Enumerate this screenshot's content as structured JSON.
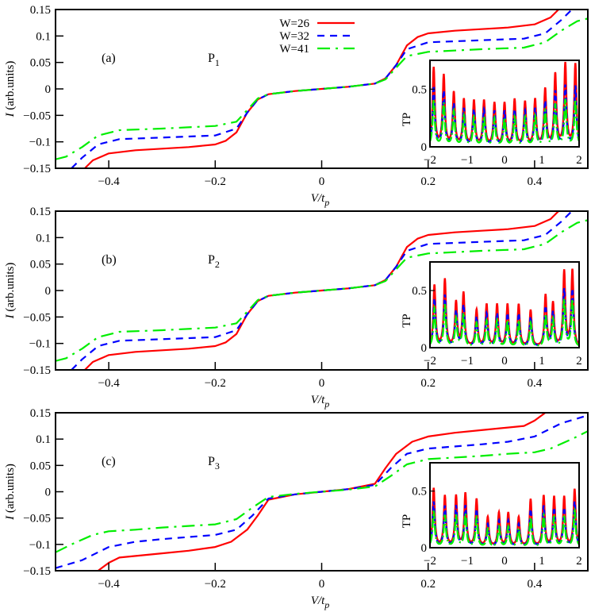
{
  "figure": {
    "legend_entries": [
      "W=26",
      "W=32",
      "W=41"
    ],
    "colors": {
      "W=26": "#ff0000",
      "W=32": "#0000ff",
      "W=41": "#00ee00"
    }
  },
  "chart_data": [
    {
      "type": "line",
      "panel": "(a)",
      "annotation": "P1",
      "xlabel": "V/t_p",
      "ylabel": "I (arb.units)",
      "xlim": [
        -0.5,
        0.5
      ],
      "ylim": [
        -0.15,
        0.15
      ],
      "xticks": [
        -0.4,
        -0.2,
        0,
        0.2,
        0.4
      ],
      "yticks": [
        -0.15,
        -0.1,
        -0.05,
        0,
        0.05,
        0.1,
        0.15
      ],
      "legend": "top-center",
      "series": [
        {
          "name": "W=26",
          "style": "solid",
          "x": [
            -0.445,
            -0.43,
            -0.4,
            -0.35,
            -0.3,
            -0.25,
            -0.2,
            -0.18,
            -0.16,
            -0.14,
            -0.12,
            -0.1,
            -0.05,
            0,
            0.05,
            0.1,
            0.12,
            0.14,
            0.16,
            0.18,
            0.2,
            0.25,
            0.3,
            0.35,
            0.4,
            0.43,
            0.445
          ],
          "y": [
            -0.15,
            -0.135,
            -0.122,
            -0.116,
            -0.113,
            -0.11,
            -0.105,
            -0.098,
            -0.082,
            -0.045,
            -0.02,
            -0.01,
            -0.004,
            0,
            0.004,
            0.01,
            0.02,
            0.045,
            0.082,
            0.098,
            0.105,
            0.11,
            0.113,
            0.116,
            0.122,
            0.135,
            0.15
          ]
        },
        {
          "name": "W=32",
          "style": "dashed",
          "x": [
            -0.47,
            -0.45,
            -0.42,
            -0.38,
            -0.3,
            -0.2,
            -0.16,
            -0.14,
            -0.12,
            -0.1,
            -0.05,
            0,
            0.05,
            0.1,
            0.12,
            0.14,
            0.16,
            0.2,
            0.3,
            0.38,
            0.42,
            0.45,
            0.47
          ],
          "y": [
            -0.15,
            -0.13,
            -0.105,
            -0.095,
            -0.092,
            -0.088,
            -0.075,
            -0.045,
            -0.02,
            -0.01,
            -0.004,
            0,
            0.004,
            0.01,
            0.02,
            0.045,
            0.075,
            0.088,
            0.092,
            0.095,
            0.105,
            0.13,
            0.15
          ]
        },
        {
          "name": "W=41",
          "style": "dash-dot",
          "x": [
            -0.5,
            -0.48,
            -0.45,
            -0.42,
            -0.38,
            -0.3,
            -0.2,
            -0.16,
            -0.14,
            -0.12,
            -0.1,
            -0.05,
            0,
            0.05,
            0.1,
            0.12,
            0.14,
            0.16,
            0.2,
            0.3,
            0.38,
            0.42,
            0.45,
            0.48,
            0.5
          ],
          "y": [
            -0.133,
            -0.128,
            -0.11,
            -0.088,
            -0.078,
            -0.075,
            -0.07,
            -0.062,
            -0.04,
            -0.018,
            -0.01,
            -0.004,
            0,
            0.004,
            0.01,
            0.018,
            0.04,
            0.062,
            0.07,
            0.075,
            0.078,
            0.088,
            0.11,
            0.128,
            0.133
          ]
        }
      ],
      "inset": {
        "type": "line",
        "ylabel": "TP",
        "xlim": [
          -2,
          2
        ],
        "ylim": [
          0,
          0.75
        ],
        "xticks": [
          -2,
          -1,
          0,
          1,
          2
        ],
        "yticks": [
          0,
          0.5
        ],
        "peak_positions": [
          -1.9,
          -1.63,
          -1.36,
          -1.09,
          -0.82,
          -0.55,
          -0.27,
          0,
          0.27,
          0.55,
          0.82,
          1.09,
          1.36,
          1.63,
          1.9
        ],
        "series": [
          {
            "name": "W=26",
            "peaks": [
              0.68,
              0.61,
              0.46,
              0.4,
              0.39,
              0.39,
              0.37,
              0.37,
              0.4,
              0.38,
              0.4,
              0.49,
              0.62,
              0.71,
              0.71
            ]
          },
          {
            "name": "W=32",
            "peaks": [
              0.52,
              0.47,
              0.36,
              0.32,
              0.31,
              0.31,
              0.3,
              0.3,
              0.31,
              0.3,
              0.32,
              0.38,
              0.47,
              0.52,
              0.52
            ]
          },
          {
            "name": "W=41",
            "peaks": [
              0.4,
              0.37,
              0.3,
              0.26,
              0.25,
              0.25,
              0.24,
              0.24,
              0.25,
              0.25,
              0.26,
              0.3,
              0.36,
              0.4,
              0.4
            ]
          }
        ]
      }
    },
    {
      "type": "line",
      "panel": "(b)",
      "annotation": "P2",
      "xlabel": "V/t_p",
      "ylabel": "I (arb.units)",
      "xlim": [
        -0.5,
        0.5
      ],
      "ylim": [
        -0.15,
        0.15
      ],
      "xticks": [
        -0.4,
        -0.2,
        0,
        0.2,
        0.4
      ],
      "yticks": [
        -0.15,
        -0.1,
        -0.05,
        0,
        0.05,
        0.1,
        0.15
      ],
      "series": [
        {
          "name": "W=26",
          "style": "solid",
          "x": [
            -0.445,
            -0.43,
            -0.4,
            -0.35,
            -0.3,
            -0.25,
            -0.2,
            -0.18,
            -0.16,
            -0.14,
            -0.12,
            -0.1,
            -0.05,
            0,
            0.05,
            0.1,
            0.12,
            0.14,
            0.16,
            0.18,
            0.2,
            0.25,
            0.3,
            0.35,
            0.4,
            0.43,
            0.445
          ],
          "y": [
            -0.15,
            -0.135,
            -0.122,
            -0.116,
            -0.113,
            -0.11,
            -0.105,
            -0.098,
            -0.082,
            -0.045,
            -0.02,
            -0.01,
            -0.004,
            0,
            0.004,
            0.01,
            0.02,
            0.045,
            0.082,
            0.098,
            0.105,
            0.11,
            0.113,
            0.116,
            0.122,
            0.135,
            0.15
          ]
        },
        {
          "name": "W=32",
          "style": "dashed",
          "x": [
            -0.47,
            -0.45,
            -0.42,
            -0.38,
            -0.3,
            -0.2,
            -0.16,
            -0.14,
            -0.12,
            -0.1,
            -0.05,
            0,
            0.05,
            0.1,
            0.12,
            0.14,
            0.16,
            0.2,
            0.3,
            0.38,
            0.42,
            0.45,
            0.47
          ],
          "y": [
            -0.15,
            -0.13,
            -0.105,
            -0.095,
            -0.092,
            -0.088,
            -0.075,
            -0.045,
            -0.02,
            -0.01,
            -0.004,
            0,
            0.004,
            0.01,
            0.02,
            0.045,
            0.075,
            0.088,
            0.092,
            0.095,
            0.105,
            0.13,
            0.15
          ]
        },
        {
          "name": "W=41",
          "style": "dash-dot",
          "x": [
            -0.5,
            -0.48,
            -0.45,
            -0.42,
            -0.38,
            -0.3,
            -0.2,
            -0.16,
            -0.14,
            -0.12,
            -0.1,
            -0.05,
            0,
            0.05,
            0.1,
            0.12,
            0.14,
            0.16,
            0.2,
            0.3,
            0.38,
            0.42,
            0.45,
            0.48,
            0.5
          ],
          "y": [
            -0.133,
            -0.128,
            -0.11,
            -0.088,
            -0.078,
            -0.075,
            -0.07,
            -0.062,
            -0.04,
            -0.018,
            -0.01,
            -0.004,
            0,
            0.004,
            0.01,
            0.018,
            0.04,
            0.062,
            0.07,
            0.075,
            0.078,
            0.088,
            0.11,
            0.128,
            0.133
          ]
        }
      ],
      "inset": {
        "type": "line",
        "ylabel": "TP",
        "xlim": [
          -2,
          2
        ],
        "ylim": [
          0,
          0.75
        ],
        "xticks": [
          -2,
          -1,
          0,
          1,
          2
        ],
        "yticks": [
          0,
          0.5
        ],
        "peak_positions": [
          -1.88,
          -1.6,
          -1.3,
          -1.1,
          -0.75,
          -0.48,
          -0.2,
          0.08,
          0.38,
          0.7,
          1.1,
          1.3,
          1.6,
          1.82
        ],
        "series": [
          {
            "name": "W=26",
            "peaks": [
              0.54,
              0.59,
              0.39,
              0.47,
              0.32,
              0.37,
              0.37,
              0.37,
              0.37,
              0.32,
              0.45,
              0.38,
              0.66,
              0.67
            ]
          },
          {
            "name": "W=32",
            "peaks": [
              0.42,
              0.45,
              0.31,
              0.36,
              0.26,
              0.29,
              0.29,
              0.29,
              0.29,
              0.26,
              0.35,
              0.3,
              0.5,
              0.5
            ]
          },
          {
            "name": "W=41",
            "peaks": [
              0.34,
              0.37,
              0.25,
              0.29,
              0.21,
              0.23,
              0.23,
              0.23,
              0.23,
              0.21,
              0.28,
              0.24,
              0.41,
              0.41
            ]
          }
        ]
      }
    },
    {
      "type": "line",
      "panel": "(c)",
      "annotation": "P3",
      "xlabel": "V/t_p",
      "ylabel": "I (arb.units)",
      "xlim": [
        -0.5,
        0.5
      ],
      "ylim": [
        -0.15,
        0.15
      ],
      "xticks": [
        -0.4,
        -0.2,
        0,
        0.2,
        0.4
      ],
      "yticks": [
        -0.15,
        -0.1,
        -0.05,
        0,
        0.05,
        0.1,
        0.15
      ],
      "series": [
        {
          "name": "W=26",
          "style": "solid",
          "x": [
            -0.42,
            -0.4,
            -0.38,
            -0.3,
            -0.25,
            -0.2,
            -0.17,
            -0.14,
            -0.12,
            -0.1,
            -0.05,
            0,
            0.05,
            0.1,
            0.12,
            0.14,
            0.17,
            0.2,
            0.25,
            0.3,
            0.38,
            0.4,
            0.42
          ],
          "y": [
            -0.15,
            -0.135,
            -0.125,
            -0.117,
            -0.112,
            -0.105,
            -0.095,
            -0.072,
            -0.045,
            -0.015,
            -0.005,
            0,
            0.005,
            0.015,
            0.045,
            0.072,
            0.095,
            0.105,
            0.112,
            0.117,
            0.125,
            0.135,
            0.15
          ]
        },
        {
          "name": "W=32",
          "style": "dashed",
          "x": [
            -0.5,
            -0.45,
            -0.4,
            -0.35,
            -0.3,
            -0.2,
            -0.16,
            -0.13,
            -0.1,
            -0.05,
            0,
            0.05,
            0.1,
            0.13,
            0.16,
            0.2,
            0.3,
            0.35,
            0.4,
            0.45,
            0.5
          ],
          "y": [
            -0.145,
            -0.13,
            -0.105,
            -0.095,
            -0.09,
            -0.082,
            -0.072,
            -0.045,
            -0.013,
            -0.005,
            0,
            0.005,
            0.013,
            0.045,
            0.072,
            0.082,
            0.09,
            0.095,
            0.105,
            0.13,
            0.145
          ]
        },
        {
          "name": "W=41",
          "style": "dash-dot",
          "x": [
            -0.5,
            -0.47,
            -0.43,
            -0.4,
            -0.35,
            -0.3,
            -0.2,
            -0.16,
            -0.13,
            -0.1,
            -0.05,
            0,
            0.05,
            0.1,
            0.13,
            0.16,
            0.2,
            0.3,
            0.35,
            0.4,
            0.43,
            0.47,
            0.5
          ],
          "y": [
            -0.115,
            -0.1,
            -0.082,
            -0.075,
            -0.072,
            -0.068,
            -0.062,
            -0.052,
            -0.03,
            -0.01,
            -0.004,
            0,
            0.004,
            0.01,
            0.03,
            0.052,
            0.062,
            0.068,
            0.072,
            0.075,
            0.082,
            0.1,
            0.115
          ]
        }
      ],
      "inset": {
        "type": "line",
        "ylabel": "TP",
        "xlim": [
          -2,
          2
        ],
        "ylim": [
          0,
          0.75
        ],
        "xticks": [
          -2,
          -1,
          0,
          1,
          2
        ],
        "yticks": [
          0,
          0.5
        ],
        "peak_positions": [
          -1.9,
          -1.6,
          -1.3,
          -1.05,
          -0.75,
          -0.45,
          -0.15,
          0.1,
          0.38,
          0.7,
          1.05,
          1.33,
          1.6,
          1.88
        ],
        "series": [
          {
            "name": "W=26",
            "peaks": [
              0.52,
              0.45,
              0.45,
              0.47,
              0.42,
              0.26,
              0.3,
              0.3,
              0.26,
              0.42,
              0.45,
              0.44,
              0.44,
              0.51
            ]
          },
          {
            "name": "W=32",
            "peaks": [
              0.4,
              0.36,
              0.36,
              0.36,
              0.33,
              0.2,
              0.23,
              0.23,
              0.2,
              0.33,
              0.36,
              0.34,
              0.34,
              0.4
            ]
          },
          {
            "name": "W=41",
            "peaks": [
              0.32,
              0.28,
              0.28,
              0.29,
              0.26,
              0.16,
              0.18,
              0.18,
              0.16,
              0.26,
              0.28,
              0.27,
              0.27,
              0.32
            ]
          }
        ]
      }
    }
  ]
}
